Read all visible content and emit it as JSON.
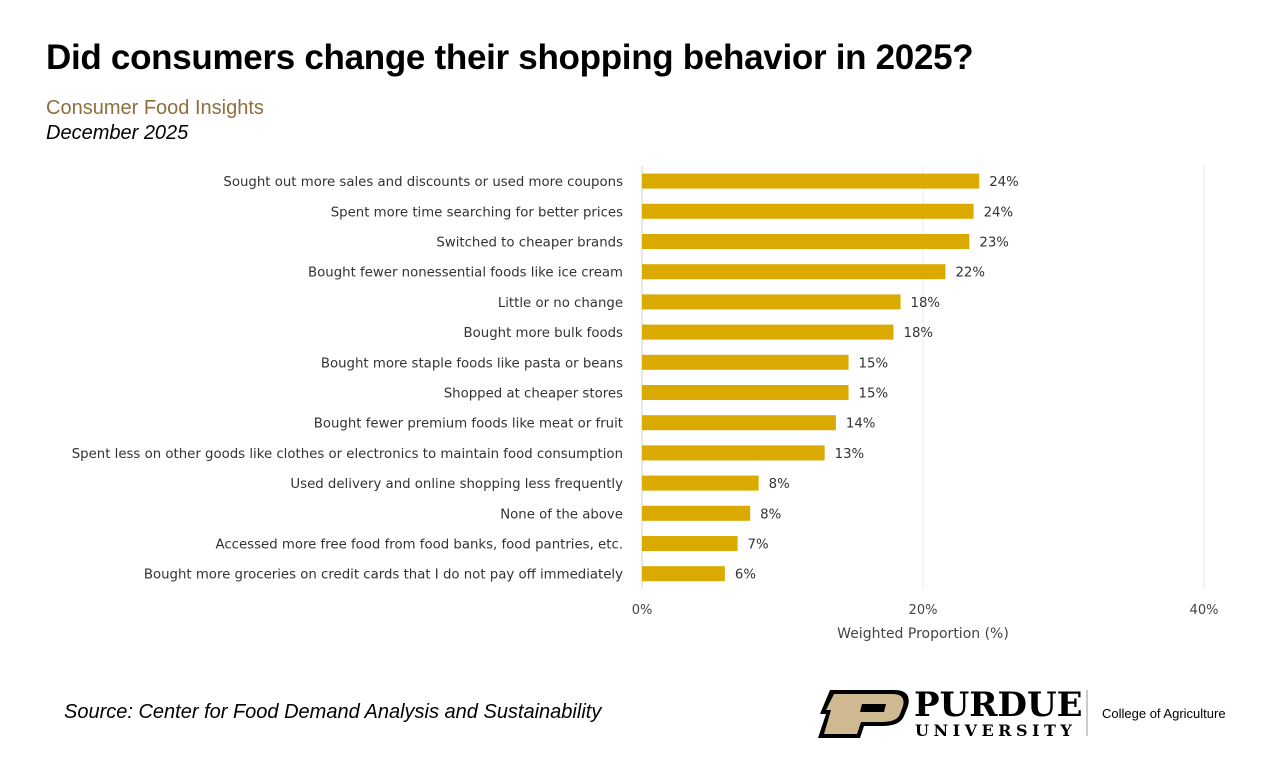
{
  "header": {
    "title": "Did consumers change their shopping behavior in 2025?",
    "subtitle": "Consumer Food Insights",
    "date": "December 2025"
  },
  "footer": {
    "source": "Source:  Center for Food Demand Analysis and Sustainability",
    "logo": {
      "name": "PURDUE",
      "sub": "UNIVERSITY",
      "college": "College of Agriculture"
    }
  },
  "colors": {
    "bar": "#DAAA00",
    "logo_gold": "#CFB991",
    "subtitle": "#8E6F3E"
  },
  "chart_data": {
    "type": "bar",
    "orientation": "horizontal",
    "xlabel": "Weighted Proportion (%)",
    "xlim": [
      0,
      40
    ],
    "xticks": [
      "0%",
      "20%",
      "40%"
    ],
    "grid": true,
    "categories": [
      "Sought out more sales and discounts or used more coupons",
      "Spent more time searching for better prices",
      "Switched to cheaper brands",
      "Bought fewer nonessential foods like ice cream",
      "Little or no change",
      "Bought more bulk foods",
      "Bought more staple foods like pasta or beans",
      "Shopped at cheaper stores",
      "Bought fewer premium foods like meat or fruit",
      "Spent less on other goods like clothes or electronics to maintain food consumption",
      "Used delivery and online shopping less frequently",
      "None of the above",
      "Accessed more free food from food banks, food pantries, etc.",
      "Bought more groceries on credit cards that I do not pay off immediately"
    ],
    "values": [
      24.0,
      23.6,
      23.3,
      21.6,
      18.4,
      17.9,
      14.7,
      14.7,
      13.8,
      13.0,
      8.3,
      7.7,
      6.8,
      5.9
    ],
    "data_labels": [
      "24%",
      "24%",
      "23%",
      "22%",
      "18%",
      "18%",
      "15%",
      "15%",
      "14%",
      "13%",
      "8%",
      "8%",
      "7%",
      "6%"
    ]
  }
}
